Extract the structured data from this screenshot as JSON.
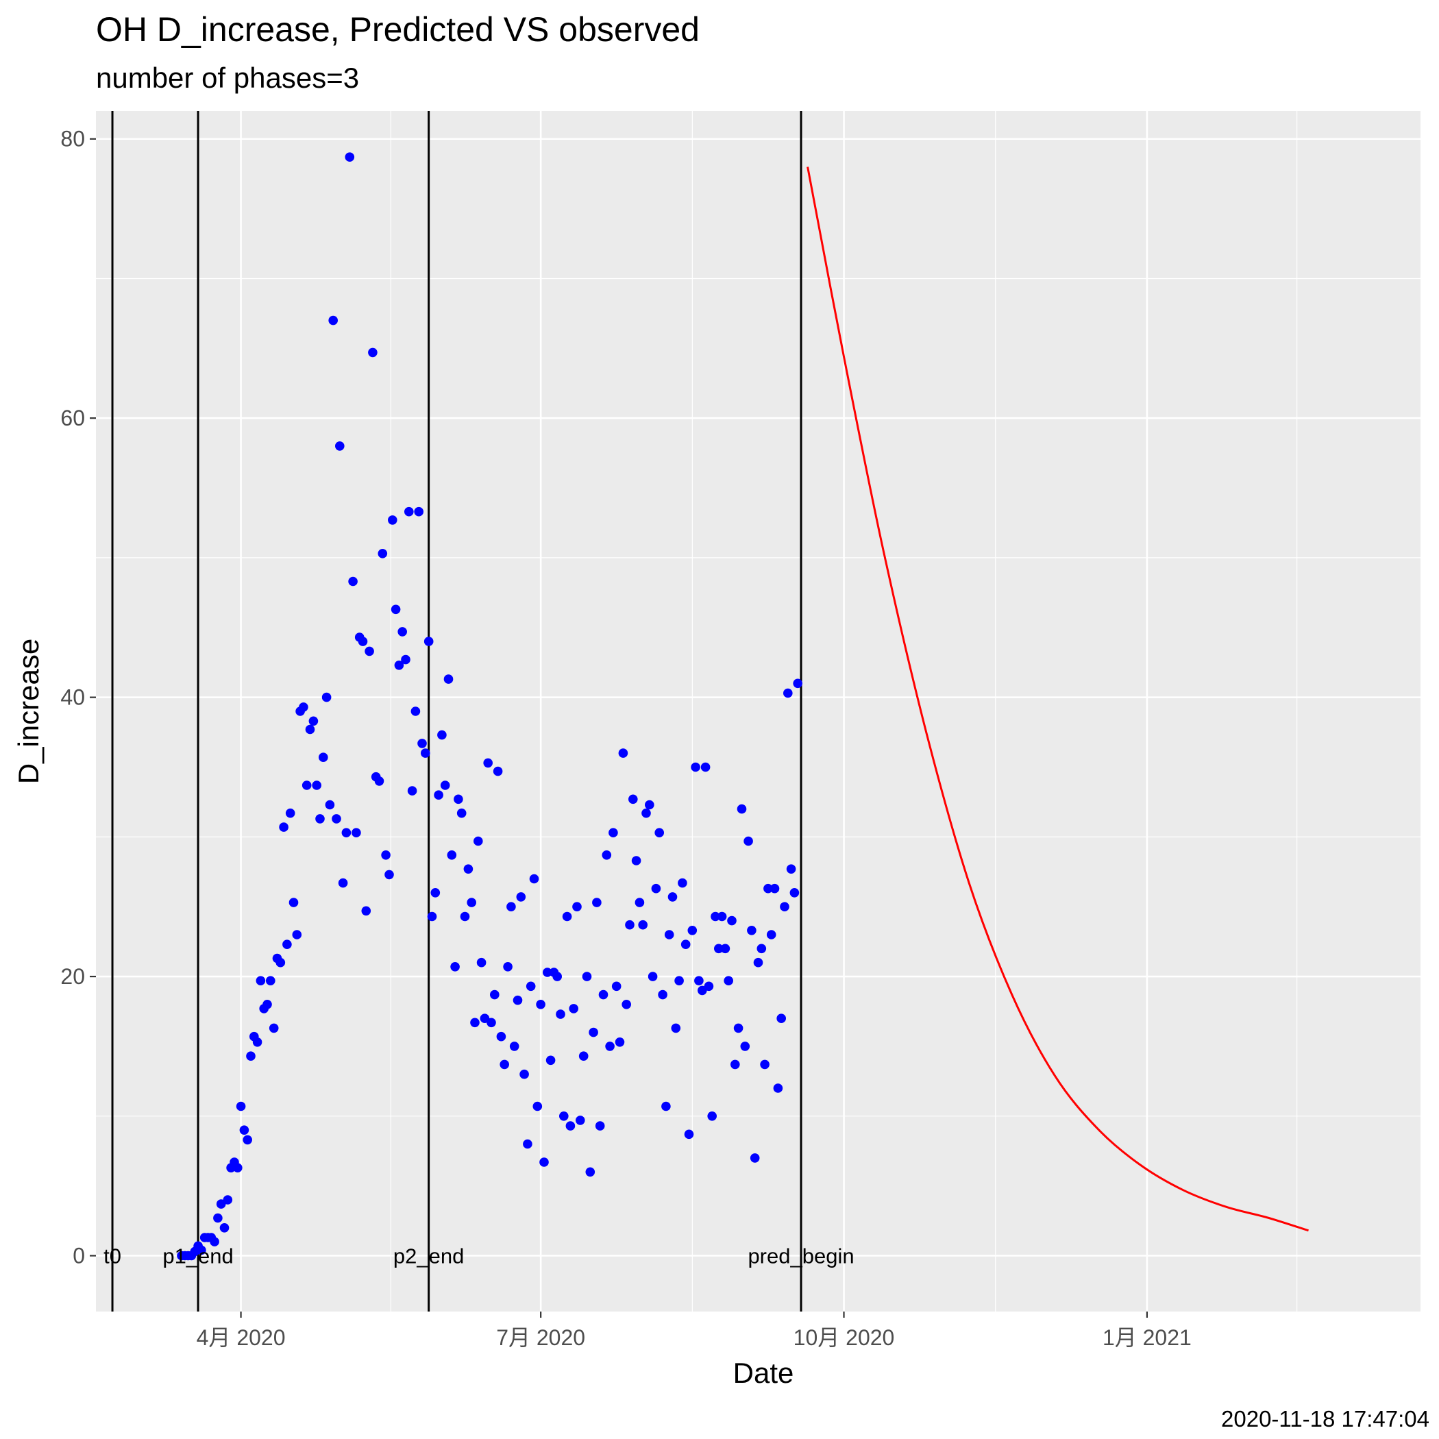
{
  "title": "OH D_increase, Predicted VS observed",
  "subtitle": "number of phases=3",
  "caption": "2020-11-18 17:47:04",
  "chart_data": {
    "type": "scatter",
    "xlabel": "Date",
    "ylabel": "D_increase",
    "xlim": [
      "2020-02-17",
      "2021-03-25"
    ],
    "ylim": [
      -4,
      82
    ],
    "grid": true,
    "legend": "none",
    "x_ticks": [
      {
        "date": "2020-04-01",
        "label": "4月 2020"
      },
      {
        "date": "2020-07-01",
        "label": "7月 2020"
      },
      {
        "date": "2020-10-01",
        "label": "10月 2020"
      },
      {
        "date": "2021-01-01",
        "label": "1月 2021"
      }
    ],
    "y_ticks": [
      0,
      20,
      40,
      60,
      80
    ],
    "vlines": [
      {
        "label": "t0",
        "date": "2020-02-22"
      },
      {
        "label": "p1_end",
        "date": "2020-03-19"
      },
      {
        "label": "p2_end",
        "date": "2020-05-28"
      },
      {
        "label": "pred_begin",
        "date": "2020-09-18"
      }
    ],
    "series": [
      {
        "color": "#0000ff",
        "mode": "markers",
        "start_date": "2020-03-14",
        "values": [
          0,
          0,
          0,
          0,
          0.3,
          0.7,
          0.4,
          1.3,
          1.3,
          1.3,
          1,
          2.7,
          3.7,
          2,
          4,
          6.3,
          6.7,
          6.3,
          10.7,
          9,
          8.3,
          14.3,
          15.7,
          15.3,
          19.7,
          17.7,
          18,
          19.7,
          16.3,
          21.3,
          21,
          30.7,
          22.3,
          31.7,
          25.3,
          23,
          39,
          39.3,
          33.7,
          37.7,
          38.3,
          33.7,
          31.3,
          35.7,
          40,
          32.3,
          67,
          31.3,
          58,
          26.7,
          30.3,
          78.7,
          48.3,
          30.3,
          44.3,
          44,
          24.7,
          43.3,
          64.7,
          34.3,
          34,
          50.3,
          28.7,
          27.3,
          52.7,
          46.3,
          42.3,
          44.7,
          42.7,
          53.3,
          33.3,
          39,
          53.3,
          36.7,
          36,
          44,
          24.3,
          26,
          33,
          37.3,
          33.7,
          41.3,
          28.7,
          20.7,
          32.7,
          31.7,
          24.3,
          27.7,
          25.3,
          16.7,
          29.7,
          21,
          17,
          35.3,
          16.7,
          18.7,
          34.7,
          15.7,
          13.7,
          20.7,
          25,
          15,
          18.3,
          25.7,
          13,
          8,
          19.3,
          27,
          10.7,
          18,
          6.7,
          20.3,
          14,
          20.3,
          20,
          17.3,
          10,
          24.3,
          9.3,
          17.7,
          25,
          9.7,
          14.3,
          20,
          6,
          16,
          25.3,
          9.3,
          18.7,
          28.7,
          15,
          30.3,
          19.3,
          15.3,
          36,
          18,
          23.7,
          32.7,
          28.3,
          25.3,
          23.7,
          31.7,
          32.3,
          20,
          26.3,
          30.3,
          18.7,
          10.7,
          23,
          25.7,
          16.3,
          19.7,
          26.7,
          22.3,
          8.7,
          23.3,
          35,
          19.7,
          19,
          35,
          19.3,
          10,
          24.3,
          22,
          24.3,
          22,
          19.7,
          24,
          13.7,
          16.3,
          32,
          15,
          29.7,
          23.3,
          7,
          21,
          22,
          13.7,
          26.3,
          23,
          26.3,
          12,
          17,
          25,
          40.3,
          27.7,
          26,
          41
        ]
      },
      {
        "color": "#ff0000",
        "mode": "line",
        "points": [
          [
            "2020-09-20",
            78
          ],
          [
            "2020-10-01",
            64.4
          ],
          [
            "2020-10-13",
            50.5
          ],
          [
            "2020-10-26",
            37.5
          ],
          [
            "2020-11-08",
            26.7
          ],
          [
            "2020-11-21",
            18.7
          ],
          [
            "2020-12-04",
            12.9
          ],
          [
            "2020-12-17",
            9.1
          ],
          [
            "2020-12-30",
            6.5
          ],
          [
            "2021-01-12",
            4.7
          ],
          [
            "2021-01-25",
            3.5
          ],
          [
            "2021-02-07",
            2.7
          ],
          [
            "2021-02-19",
            1.8
          ]
        ]
      }
    ]
  }
}
